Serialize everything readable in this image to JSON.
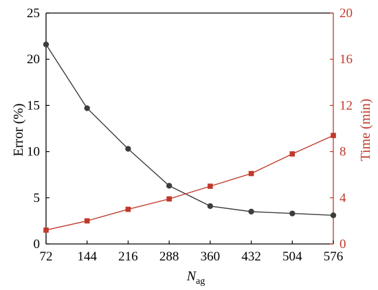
{
  "chart_data": {
    "type": "line",
    "title": "",
    "xlabel": "N",
    "xlabel_subscript": "ag",
    "x": [
      72,
      144,
      216,
      288,
      360,
      432,
      504,
      576
    ],
    "x_tick_labels": [
      "72",
      "144",
      "216",
      "288",
      "360",
      "432",
      "504",
      "576"
    ],
    "xlim": [
      72,
      576
    ],
    "left_axis": {
      "label": "Error (%)",
      "lim": [
        0,
        25
      ],
      "ticks": [
        0,
        5,
        10,
        15,
        20,
        25
      ],
      "tick_labels": [
        "0",
        "5",
        "10",
        "15",
        "20",
        "25"
      ],
      "color": "#000000"
    },
    "right_axis": {
      "label": "Time (min)",
      "lim": [
        0,
        20
      ],
      "ticks": [
        0,
        4,
        8,
        12,
        16,
        20
      ],
      "tick_labels": [
        "0",
        "4",
        "8",
        "12",
        "16",
        "20"
      ],
      "color": "#c0392b"
    },
    "series": [
      {
        "axis": "left",
        "marker": "circle",
        "color": "#3d3d3d",
        "values": [
          21.6,
          14.7,
          10.3,
          6.3,
          4.1,
          3.5,
          3.3,
          3.1
        ]
      },
      {
        "axis": "right",
        "marker": "square",
        "color": "#c0392b",
        "values": [
          1.2,
          2.0,
          3.0,
          3.9,
          5.0,
          6.1,
          7.8,
          9.4
        ]
      }
    ],
    "grid": false,
    "legend": "none"
  }
}
